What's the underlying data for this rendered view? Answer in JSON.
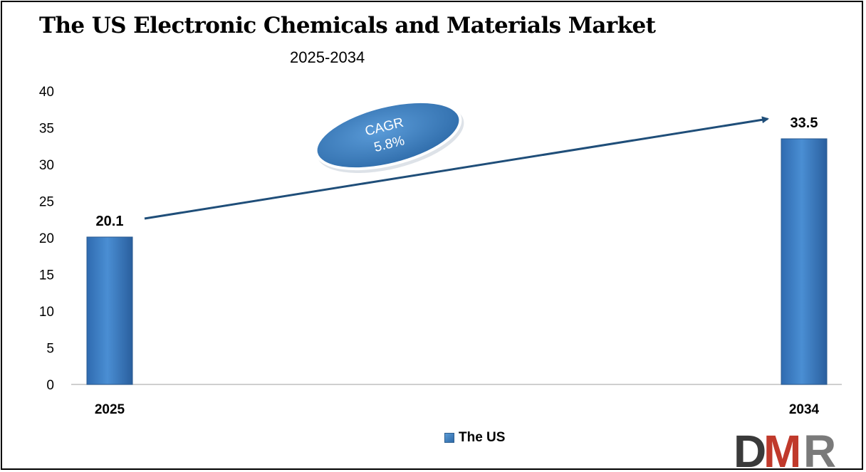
{
  "chart_data": {
    "type": "bar",
    "title": "The US Electronic Chemicals and Materials Market",
    "subtitle": "2025-2034",
    "categories": [
      "2025",
      "2034"
    ],
    "series": [
      {
        "name": "The US",
        "values": [
          20.1,
          33.5
        ],
        "color": "#3c7dc1"
      }
    ],
    "data_labels": [
      "20.1",
      "33.5"
    ],
    "ylim": [
      0,
      40
    ],
    "yticks": [
      0,
      5,
      10,
      15,
      20,
      25,
      30,
      35,
      40
    ],
    "xlabel": "",
    "ylabel": "",
    "grid": false,
    "legend": "bottom",
    "annotation": {
      "line1": "CAGR",
      "line2": "5.8%"
    }
  },
  "brand": {
    "logo_text": "DMR",
    "colors": {
      "d": "#3a3a3a",
      "m": "#c0392b",
      "r": "#7a7a7a"
    }
  }
}
